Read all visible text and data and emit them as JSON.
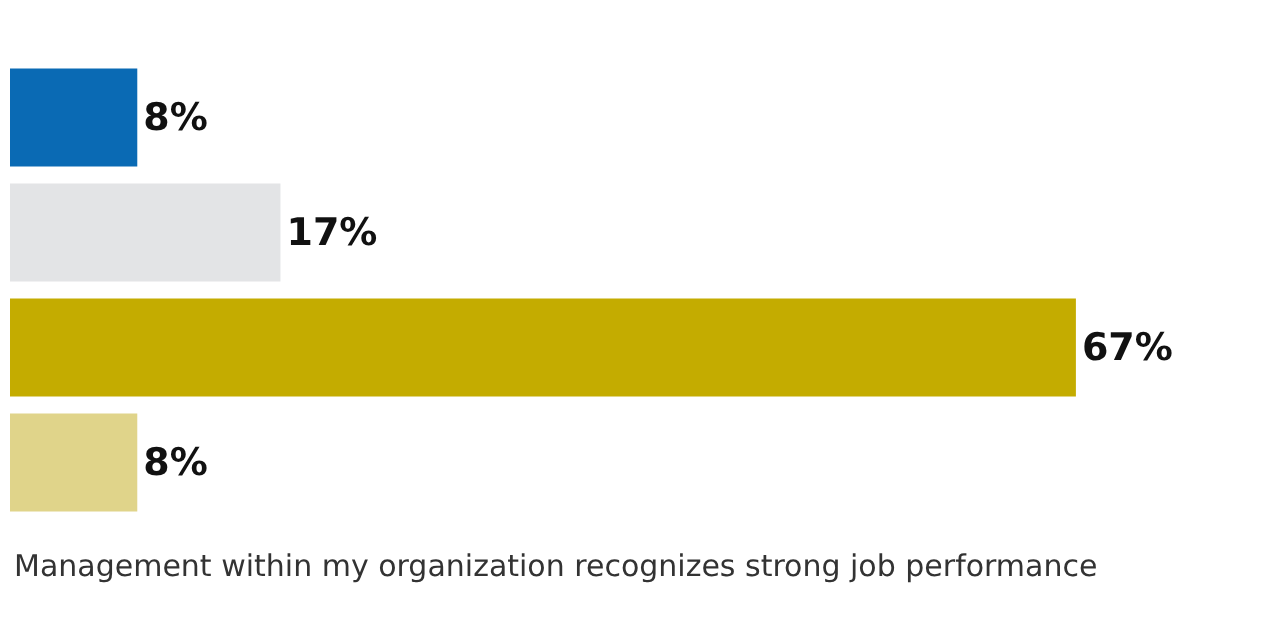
{
  "chart_data": {
    "type": "bar",
    "orientation": "horizontal",
    "categories": [
      null,
      null,
      null,
      null
    ],
    "values": [
      8,
      17,
      67,
      8
    ],
    "colors": [
      "#0a6ab4",
      "#e3e4e6",
      "#c4ac00",
      "#e0d48a"
    ],
    "value_labels": [
      "8%",
      "17%",
      "67%",
      "8%"
    ],
    "xlabel": "Management within my organization recognizes strong job performance",
    "tick_labels": false
  }
}
